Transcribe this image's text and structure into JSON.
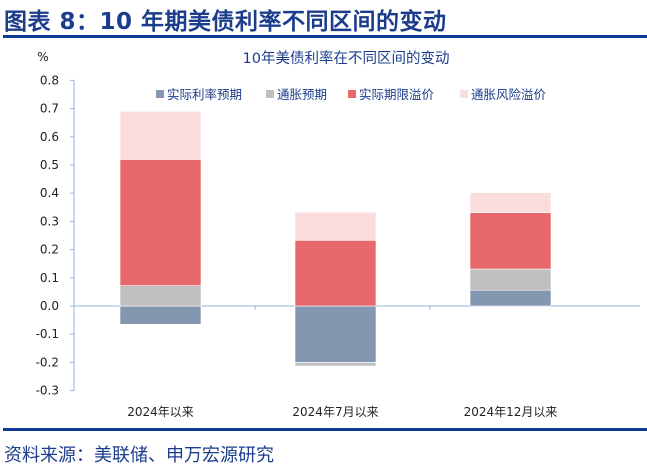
{
  "figure_title": "图表 8：10 年期美债利率不同区间的变动",
  "source": "资料来源：美联储、申万宏源研究",
  "chart_data": {
    "type": "bar",
    "stacked": true,
    "title": "10年美债利率在不同区间的变动",
    "ylabel": "%",
    "xlabel": "",
    "ylim": [
      -0.3,
      0.8
    ],
    "yticks": [
      -0.3,
      -0.2,
      -0.1,
      0.0,
      0.1,
      0.2,
      0.3,
      0.4,
      0.5,
      0.6,
      0.7,
      0.8
    ],
    "ytick_labels": [
      "-0.3",
      "-0.2",
      "-0.1",
      "0.0",
      "0.1",
      "0.2",
      "0.3",
      "0.4",
      "0.5",
      "0.6",
      "0.7",
      "0.8"
    ],
    "grid": false,
    "legend_position": "top",
    "categories": [
      "2024年以来",
      "2024年7月以来",
      "2024年12月以来"
    ],
    "series": [
      {
        "name": "实际利率预期",
        "color": "#8497b0",
        "values": [
          -0.065,
          -0.2,
          0.056
        ]
      },
      {
        "name": "通胀预期",
        "color": "#bfbfbf",
        "values": [
          0.072,
          -0.013,
          0.075
        ]
      },
      {
        "name": "实际期限溢价",
        "color": "#e6686a",
        "values": [
          0.448,
          0.233,
          0.2
        ]
      },
      {
        "name": "通胀风险溢价",
        "color": "#fadcdc",
        "values": [
          0.17,
          0.1,
          0.071
        ]
      }
    ]
  }
}
